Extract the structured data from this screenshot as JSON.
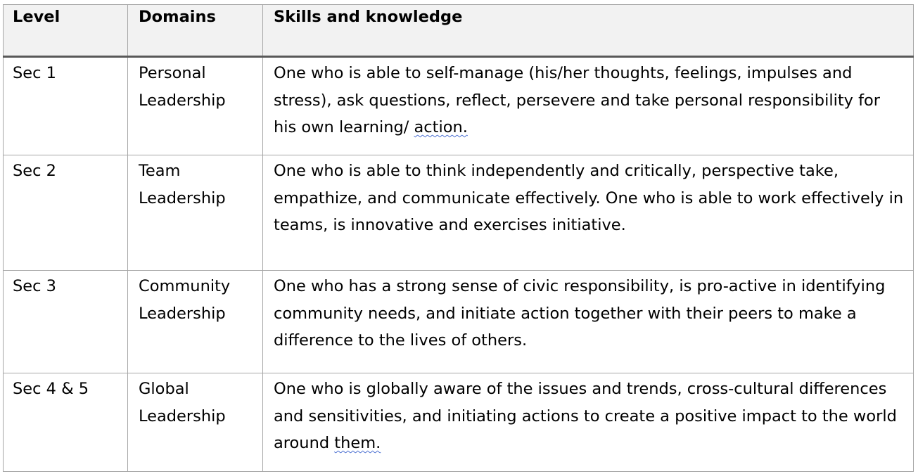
{
  "table": {
    "headers": {
      "level": "Level",
      "domains": "Domains",
      "skills": "Skills and knowledge"
    },
    "rows": [
      {
        "level": "Sec 1",
        "domain": "Personal Leadership",
        "skills_main": "One who is able to self-manage (his/her thoughts, feelings, impulses and stress), ask questions, reflect, persevere and take personal responsibility for his own learning/ ",
        "skills_flagged": "action."
      },
      {
        "level": "Sec 2",
        "domain": "Team Leadership",
        "skills_main": "One who is able to think independently and critically, perspective take, empathize, and communicate effectively. One who is able to work effectively in teams, is innovative and exercises initiative.",
        "skills_flagged": ""
      },
      {
        "level": "Sec 3",
        "domain": "Community Leadership",
        "skills_main": "One who has a strong sense of civic responsibility, is pro-active in identifying community needs, and initiate action together with their peers to make a difference to the lives of others.",
        "skills_flagged": ""
      },
      {
        "level": "Sec 4 & 5",
        "domain": "Global Leadership",
        "skills_main": "One who is globally aware of the issues and trends, cross-cultural differences and sensitivities, and initiating actions to create a positive impact to the world around ",
        "skills_flagged": "them."
      }
    ]
  },
  "colors": {
    "header_bg": "#f2f2f2",
    "grid": "#a6a6a6",
    "header_rule": "#595959",
    "spellcheck": "#4a6fd1"
  }
}
